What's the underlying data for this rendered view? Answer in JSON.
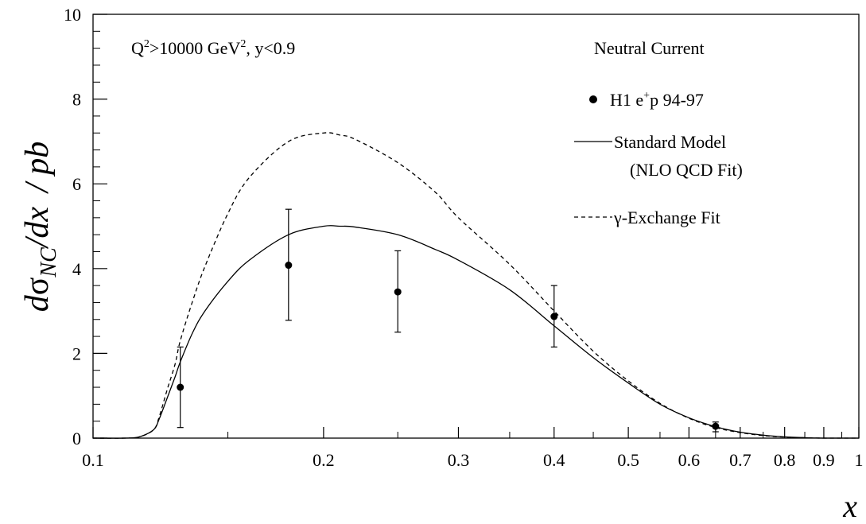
{
  "chart_data": {
    "type": "scatter",
    "title": "",
    "xlabel": "x",
    "ylabel": "dσNC/dx / pb",
    "ylabel_parts": {
      "d": "d",
      "sigma": "σ",
      "subscript": "NC",
      "rest": "/dx",
      "unit": "/ pb"
    },
    "x_scale": "log",
    "xlim": [
      0.1,
      1.0
    ],
    "ylim": [
      0,
      10
    ],
    "x_ticks": [
      0.1,
      0.2,
      0.3,
      0.4,
      0.5,
      0.6,
      0.7,
      0.8,
      0.9,
      1
    ],
    "x_tick_labels": [
      "0.1",
      "0.2",
      "0.3",
      "0.4",
      "0.5",
      "0.6",
      "0.7",
      "0.8",
      "0.9",
      "1"
    ],
    "y_ticks": [
      0,
      2,
      4,
      6,
      8,
      10
    ],
    "y_tick_labels": [
      "0",
      "2",
      "4",
      "6",
      "8",
      "10"
    ],
    "annotation": {
      "cut_text": {
        "q": "Q",
        "q_sup": "2",
        "mid": ">10000 GeV",
        "gev_sup": "2",
        "end": ", y<0.9"
      },
      "process": "Neutral Current"
    },
    "series": [
      {
        "name": "H1 e+p 94-97",
        "name_parts": {
          "a": "H1 e",
          "sup": "+",
          "b": "p 94-97"
        },
        "kind": "points",
        "x": [
          0.13,
          0.18,
          0.25,
          0.4,
          0.65
        ],
        "y": [
          1.2,
          4.08,
          3.45,
          2.87,
          0.28
        ],
        "y_low": [
          0.25,
          2.78,
          2.5,
          2.15,
          0.15
        ],
        "y_high": [
          2.15,
          5.4,
          4.42,
          3.6,
          0.38
        ]
      },
      {
        "name": "Standard Model",
        "name_line2": "(NLO QCD Fit)",
        "kind": "line",
        "style": "solid",
        "x": [
          0.1,
          0.11,
          0.115,
          0.12,
          0.122,
          0.125,
          0.128,
          0.13,
          0.135,
          0.14,
          0.15,
          0.16,
          0.18,
          0.2,
          0.21,
          0.22,
          0.25,
          0.28,
          0.3,
          0.35,
          0.4,
          0.45,
          0.5,
          0.55,
          0.6,
          0.65,
          0.7,
          0.75,
          0.8,
          0.85,
          0.9,
          1.0
        ],
        "y": [
          0.0,
          0.0,
          0.03,
          0.2,
          0.45,
          0.95,
          1.45,
          1.8,
          2.5,
          3.0,
          3.7,
          4.2,
          4.8,
          5.0,
          5.0,
          4.98,
          4.8,
          4.45,
          4.2,
          3.5,
          2.65,
          1.9,
          1.3,
          0.8,
          0.48,
          0.27,
          0.14,
          0.07,
          0.03,
          0.01,
          0.0,
          0.0
        ]
      },
      {
        "name": "γ-Exchange Fit",
        "kind": "line",
        "style": "dashed",
        "x": [
          0.1,
          0.11,
          0.115,
          0.12,
          0.122,
          0.125,
          0.128,
          0.13,
          0.135,
          0.14,
          0.15,
          0.16,
          0.18,
          0.2,
          0.21,
          0.22,
          0.25,
          0.28,
          0.3,
          0.35,
          0.4,
          0.45,
          0.5,
          0.55,
          0.6,
          0.65,
          0.7,
          0.75,
          0.8,
          0.85,
          0.9,
          1.0
        ],
        "y": [
          0.0,
          0.0,
          0.03,
          0.2,
          0.5,
          1.15,
          1.75,
          2.3,
          3.25,
          4.05,
          5.3,
          6.15,
          7.0,
          7.2,
          7.15,
          7.05,
          6.5,
          5.8,
          5.2,
          4.1,
          3.0,
          2.05,
          1.35,
          0.82,
          0.47,
          0.25,
          0.13,
          0.06,
          0.025,
          0.008,
          0.0,
          0.0
        ]
      }
    ],
    "colors": {
      "axis": "#000000",
      "series": "#000000"
    }
  }
}
